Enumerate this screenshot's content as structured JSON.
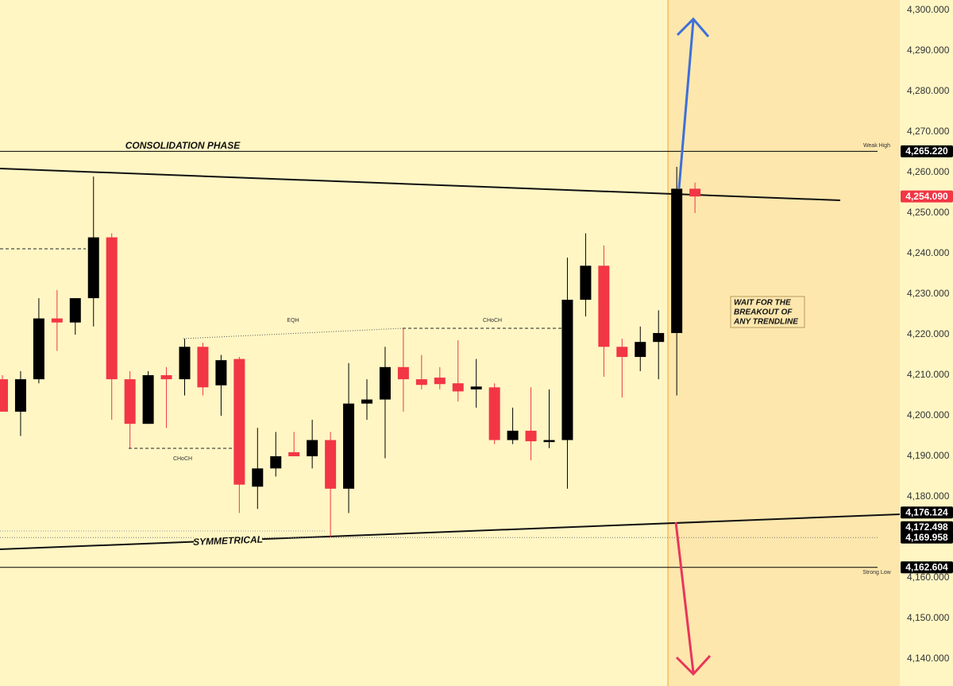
{
  "chart_data": {
    "type": "candlestick",
    "series": {
      "open": [
        4209,
        4201,
        4209,
        4224,
        4223,
        4229,
        4244,
        4209,
        4198,
        4210,
        4209,
        4217,
        4207.5,
        4214,
        4182.5,
        4187,
        4191,
        4190,
        4194,
        4182,
        4203,
        4204,
        4212,
        4209,
        4209.4,
        4208,
        4206.5,
        4207,
        4194,
        4196.3,
        4193.5,
        4194,
        4228.6,
        4237,
        4217,
        4214.5,
        4218.2,
        4220.4,
        4256
      ],
      "high": [
        4210,
        4211,
        4229,
        4231,
        4229,
        4259,
        4245,
        4211,
        4211,
        4212,
        4219,
        4218,
        4215,
        4214.5,
        4197,
        4196,
        4196,
        4199,
        4196,
        4213,
        4209,
        4217,
        4221.5,
        4215,
        4212,
        4218.6,
        4214,
        4208,
        4202,
        4207,
        4206.5,
        4239,
        4245,
        4242,
        4219,
        4222,
        4226,
        4261.4,
        4257.5
      ],
      "low": [
        4201,
        4195,
        4208,
        4216,
        4220,
        4222,
        4199,
        4192,
        4198,
        4197,
        4205,
        4205,
        4200,
        4176,
        4177,
        4185,
        4190,
        4187,
        4170,
        4176,
        4199,
        4189.5,
        4201,
        4206.5,
        4206.5,
        4203.5,
        4202,
        4193,
        4193,
        4189,
        4192,
        4182,
        4224.5,
        4209.6,
        4204.5,
        4211,
        4209,
        4205,
        4250
      ],
      "close": [
        4201,
        4209,
        4224,
        4223,
        4229,
        4244,
        4209,
        4198,
        4210,
        4209,
        4217,
        4207,
        4213.7,
        4183,
        4187,
        4190,
        4190,
        4194,
        4182,
        4203,
        4204,
        4212,
        4209,
        4207.6,
        4207.8,
        4206,
        4207.2,
        4194,
        4196.3,
        4193.7,
        4194,
        4228.6,
        4237,
        4217,
        4214.5,
        4218.2,
        4220.4,
        4256,
        4254.09
      ]
    },
    "up_color": "#000000",
    "down_color": "#f23645",
    "ylim": [
      4133.33,
      4302.55
    ],
    "yticks": [
      {
        "value": 4140,
        "label": "4,140.000"
      },
      {
        "value": 4150,
        "label": "4,150.000"
      },
      {
        "value": 4160,
        "label": "4,160.000"
      },
      {
        "value": 4170,
        "label": "4,170.000"
      },
      {
        "value": 4180,
        "label": "4,180.000"
      },
      {
        "value": 4190,
        "label": "4,190.000"
      },
      {
        "value": 4200,
        "label": "4,200.000"
      },
      {
        "value": 4210,
        "label": "4,210.000"
      },
      {
        "value": 4220,
        "label": "4,220.000"
      },
      {
        "value": 4230,
        "label": "4,230.000"
      },
      {
        "value": 4240,
        "label": "4,240.000"
      },
      {
        "value": 4250,
        "label": "4,250.000"
      },
      {
        "value": 4260,
        "label": "4,260.000"
      },
      {
        "value": 4270,
        "label": "4,270.000"
      },
      {
        "value": 4280,
        "label": "4,280.000"
      },
      {
        "value": 4290,
        "label": "4,290.000"
      },
      {
        "value": 4300,
        "label": "4,300.000"
      }
    ],
    "price_tags": [
      {
        "value": 4265.22,
        "label": "4,265.220",
        "color": "#000000",
        "line": "solid"
      },
      {
        "value": 4254.09,
        "label": "4,254.090",
        "color": "#f23645",
        "line": "none"
      },
      {
        "value": 4176.124,
        "label": "4,176.124",
        "color": "#000000",
        "line": "none"
      },
      {
        "value": 4172.498,
        "label": "4,172.498",
        "color": "#000000",
        "line": "none"
      },
      {
        "value": 4169.958,
        "label": "4,169.958",
        "color": "#000000",
        "line": "dotted"
      },
      {
        "value": 4162.604,
        "label": "4,162.604",
        "color": "#000000",
        "line": "solid"
      }
    ],
    "annotations": {
      "consolidation": "CONSOLIDATION PHASE",
      "symmetrical": "SYMMETRICAL",
      "wait": [
        "WAIT FOR THE",
        "BREAKOUT OF",
        "ANY TRENDLINE"
      ],
      "eqh": "EQH",
      "choch_right": "CHoCH",
      "choch_left": "CHoCH",
      "weak_high": "Weak High",
      "strong_low": "Strong Low"
    }
  }
}
